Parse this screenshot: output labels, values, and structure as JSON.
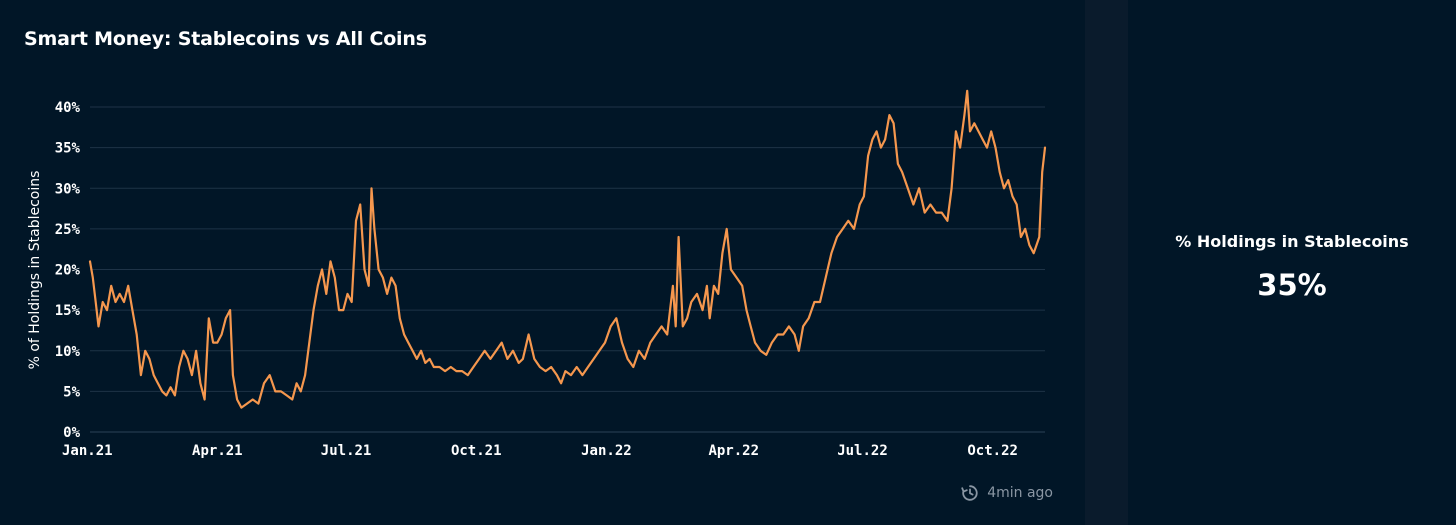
{
  "chart_data": {
    "type": "line",
    "title": "Smart Money: Stablecoins vs All Coins",
    "xlabel": "",
    "ylabel": "% of Holdings in Stablecoins",
    "ylim": [
      0,
      40
    ],
    "y_ticks": [
      "0%",
      "5%",
      "10%",
      "15%",
      "20%",
      "25%",
      "30%",
      "35%",
      "40%"
    ],
    "y_tick_values": [
      0,
      5,
      10,
      15,
      20,
      25,
      30,
      35,
      40
    ],
    "x_ticks": [
      "Jan.21",
      "Apr.21",
      "Jul.21",
      "Oct.21",
      "Jan.22",
      "Apr.22",
      "Jul.22",
      "Oct.22"
    ],
    "x_tick_values": [
      "2021-01-01",
      "2021-04-01",
      "2021-07-01",
      "2021-10-01",
      "2022-01-01",
      "2022-04-01",
      "2022-07-01",
      "2022-10-01"
    ],
    "grid": true,
    "line_color": "#f5974e",
    "series": [
      {
        "points": [
          [
            "2021-01-01",
            21
          ],
          [
            "2021-01-03",
            19
          ],
          [
            "2021-01-05",
            16
          ],
          [
            "2021-01-07",
            13
          ],
          [
            "2021-01-10",
            16
          ],
          [
            "2021-01-13",
            15
          ],
          [
            "2021-01-16",
            18
          ],
          [
            "2021-01-19",
            16
          ],
          [
            "2021-01-22",
            17
          ],
          [
            "2021-01-25",
            16
          ],
          [
            "2021-01-28",
            18
          ],
          [
            "2021-01-31",
            15
          ],
          [
            "2021-02-03",
            12
          ],
          [
            "2021-02-06",
            7
          ],
          [
            "2021-02-09",
            10
          ],
          [
            "2021-02-12",
            9
          ],
          [
            "2021-02-15",
            7
          ],
          [
            "2021-02-18",
            6
          ],
          [
            "2021-02-21",
            5
          ],
          [
            "2021-02-24",
            4.5
          ],
          [
            "2021-02-27",
            5.5
          ],
          [
            "2021-03-02",
            4.5
          ],
          [
            "2021-03-05",
            8
          ],
          [
            "2021-03-08",
            10
          ],
          [
            "2021-03-11",
            9
          ],
          [
            "2021-03-14",
            7
          ],
          [
            "2021-03-17",
            10
          ],
          [
            "2021-03-20",
            6
          ],
          [
            "2021-03-23",
            4
          ],
          [
            "2021-03-26",
            14
          ],
          [
            "2021-03-29",
            11
          ],
          [
            "2021-04-01",
            11
          ],
          [
            "2021-04-04",
            12
          ],
          [
            "2021-04-07",
            14
          ],
          [
            "2021-04-10",
            15
          ],
          [
            "2021-04-12",
            7
          ],
          [
            "2021-04-15",
            4
          ],
          [
            "2021-04-18",
            3
          ],
          [
            "2021-04-22",
            3.5
          ],
          [
            "2021-04-26",
            4
          ],
          [
            "2021-04-30",
            3.5
          ],
          [
            "2021-05-04",
            6
          ],
          [
            "2021-05-08",
            7
          ],
          [
            "2021-05-12",
            5
          ],
          [
            "2021-05-16",
            5
          ],
          [
            "2021-05-20",
            4.5
          ],
          [
            "2021-05-24",
            4
          ],
          [
            "2021-05-27",
            6
          ],
          [
            "2021-05-30",
            5
          ],
          [
            "2021-06-02",
            7
          ],
          [
            "2021-06-05",
            11
          ],
          [
            "2021-06-08",
            15
          ],
          [
            "2021-06-11",
            18
          ],
          [
            "2021-06-14",
            20
          ],
          [
            "2021-06-17",
            17
          ],
          [
            "2021-06-20",
            21
          ],
          [
            "2021-06-23",
            19
          ],
          [
            "2021-06-26",
            15
          ],
          [
            "2021-06-29",
            15
          ],
          [
            "2021-07-02",
            17
          ],
          [
            "2021-07-05",
            16
          ],
          [
            "2021-07-08",
            26
          ],
          [
            "2021-07-11",
            28
          ],
          [
            "2021-07-14",
            20
          ],
          [
            "2021-07-17",
            18
          ],
          [
            "2021-07-19",
            30
          ],
          [
            "2021-07-21",
            25
          ],
          [
            "2021-07-24",
            20
          ],
          [
            "2021-07-27",
            19
          ],
          [
            "2021-07-30",
            17
          ],
          [
            "2021-08-02",
            19
          ],
          [
            "2021-08-05",
            18
          ],
          [
            "2021-08-08",
            14
          ],
          [
            "2021-08-11",
            12
          ],
          [
            "2021-08-14",
            11
          ],
          [
            "2021-08-17",
            10
          ],
          [
            "2021-08-20",
            9
          ],
          [
            "2021-08-23",
            10
          ],
          [
            "2021-08-26",
            8.5
          ],
          [
            "2021-08-29",
            9
          ],
          [
            "2021-09-01",
            8
          ],
          [
            "2021-09-05",
            8
          ],
          [
            "2021-09-09",
            7.5
          ],
          [
            "2021-09-13",
            8
          ],
          [
            "2021-09-17",
            7.5
          ],
          [
            "2021-09-21",
            7.5
          ],
          [
            "2021-09-25",
            7
          ],
          [
            "2021-09-29",
            8
          ],
          [
            "2021-10-03",
            9
          ],
          [
            "2021-10-07",
            10
          ],
          [
            "2021-10-11",
            9
          ],
          [
            "2021-10-15",
            10
          ],
          [
            "2021-10-19",
            11
          ],
          [
            "2021-10-23",
            9
          ],
          [
            "2021-10-27",
            10
          ],
          [
            "2021-10-31",
            8.5
          ],
          [
            "2021-11-03",
            9
          ],
          [
            "2021-11-07",
            12
          ],
          [
            "2021-11-11",
            9
          ],
          [
            "2021-11-15",
            8
          ],
          [
            "2021-11-19",
            7.5
          ],
          [
            "2021-11-23",
            8
          ],
          [
            "2021-11-27",
            7
          ],
          [
            "2021-11-30",
            6
          ],
          [
            "2021-12-03",
            7.5
          ],
          [
            "2021-12-07",
            7
          ],
          [
            "2021-12-11",
            8
          ],
          [
            "2021-12-15",
            7
          ],
          [
            "2021-12-19",
            8
          ],
          [
            "2021-12-23",
            9
          ],
          [
            "2021-12-27",
            10
          ],
          [
            "2021-12-31",
            11
          ],
          [
            "2022-01-04",
            13
          ],
          [
            "2022-01-08",
            14
          ],
          [
            "2022-01-12",
            11
          ],
          [
            "2022-01-16",
            9
          ],
          [
            "2022-01-20",
            8
          ],
          [
            "2022-01-24",
            10
          ],
          [
            "2022-01-28",
            9
          ],
          [
            "2022-02-01",
            11
          ],
          [
            "2022-02-05",
            12
          ],
          [
            "2022-02-09",
            13
          ],
          [
            "2022-02-13",
            12
          ],
          [
            "2022-02-17",
            18
          ],
          [
            "2022-02-19",
            13
          ],
          [
            "2022-02-21",
            24
          ],
          [
            "2022-02-24",
            13
          ],
          [
            "2022-02-27",
            14
          ],
          [
            "2022-03-02",
            16
          ],
          [
            "2022-03-06",
            17
          ],
          [
            "2022-03-10",
            15
          ],
          [
            "2022-03-13",
            18
          ],
          [
            "2022-03-15",
            14
          ],
          [
            "2022-03-18",
            18
          ],
          [
            "2022-03-21",
            17
          ],
          [
            "2022-03-24",
            22
          ],
          [
            "2022-03-27",
            25
          ],
          [
            "2022-03-30",
            20
          ],
          [
            "2022-04-03",
            19
          ],
          [
            "2022-04-07",
            18
          ],
          [
            "2022-04-10",
            15
          ],
          [
            "2022-04-13",
            13
          ],
          [
            "2022-04-16",
            11
          ],
          [
            "2022-04-20",
            10
          ],
          [
            "2022-04-24",
            9.5
          ],
          [
            "2022-04-28",
            11
          ],
          [
            "2022-05-02",
            12
          ],
          [
            "2022-05-06",
            12
          ],
          [
            "2022-05-10",
            13
          ],
          [
            "2022-05-14",
            12
          ],
          [
            "2022-05-17",
            10
          ],
          [
            "2022-05-20",
            13
          ],
          [
            "2022-05-24",
            14
          ],
          [
            "2022-05-28",
            16
          ],
          [
            "2022-06-01",
            16
          ],
          [
            "2022-06-05",
            19
          ],
          [
            "2022-06-09",
            22
          ],
          [
            "2022-06-13",
            24
          ],
          [
            "2022-06-17",
            25
          ],
          [
            "2022-06-21",
            26
          ],
          [
            "2022-06-25",
            25
          ],
          [
            "2022-06-29",
            28
          ],
          [
            "2022-07-02",
            29
          ],
          [
            "2022-07-05",
            34
          ],
          [
            "2022-07-08",
            36
          ],
          [
            "2022-07-11",
            37
          ],
          [
            "2022-07-14",
            35
          ],
          [
            "2022-07-17",
            36
          ],
          [
            "2022-07-20",
            39
          ],
          [
            "2022-07-23",
            38
          ],
          [
            "2022-07-26",
            33
          ],
          [
            "2022-07-29",
            32
          ],
          [
            "2022-08-02",
            30
          ],
          [
            "2022-08-06",
            28
          ],
          [
            "2022-08-10",
            30
          ],
          [
            "2022-08-14",
            27
          ],
          [
            "2022-08-18",
            28
          ],
          [
            "2022-08-22",
            27
          ],
          [
            "2022-08-26",
            27
          ],
          [
            "2022-08-30",
            26
          ],
          [
            "2022-09-02",
            30
          ],
          [
            "2022-09-05",
            37
          ],
          [
            "2022-09-08",
            35
          ],
          [
            "2022-09-11",
            39
          ],
          [
            "2022-09-13",
            42
          ],
          [
            "2022-09-15",
            37
          ],
          [
            "2022-09-18",
            38
          ],
          [
            "2022-09-21",
            37
          ],
          [
            "2022-09-24",
            36
          ],
          [
            "2022-09-27",
            35
          ],
          [
            "2022-09-30",
            37
          ],
          [
            "2022-10-03",
            35
          ],
          [
            "2022-10-06",
            32
          ],
          [
            "2022-10-09",
            30
          ],
          [
            "2022-10-12",
            31
          ],
          [
            "2022-10-15",
            29
          ],
          [
            "2022-10-18",
            28
          ],
          [
            "2022-10-21",
            24
          ],
          [
            "2022-10-24",
            25
          ],
          [
            "2022-10-27",
            23
          ],
          [
            "2022-10-30",
            22
          ],
          [
            "2022-11-01",
            23
          ],
          [
            "2022-11-03",
            24
          ],
          [
            "2022-11-05",
            32
          ],
          [
            "2022-11-07",
            35
          ]
        ]
      }
    ]
  },
  "meta": {
    "updated_text": "4min ago"
  },
  "kpi": {
    "label": "% Holdings in Stablecoins",
    "value": "35%"
  }
}
